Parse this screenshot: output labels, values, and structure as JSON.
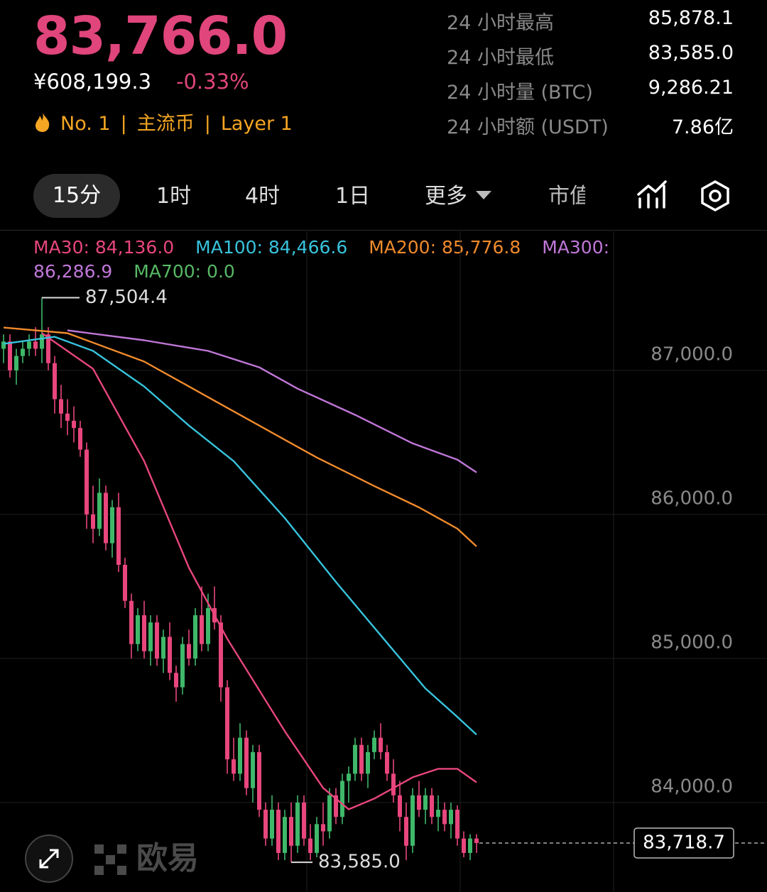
{
  "header": {
    "price": "83,766.0",
    "cny": "¥608,199.3",
    "change": "-0.33%",
    "tags": [
      "No. 1",
      "主流币",
      "Layer 1"
    ]
  },
  "stats": [
    {
      "label": "24 小时最高",
      "value": "85,878.1"
    },
    {
      "label": "24 小时最低",
      "value": "83,585.0"
    },
    {
      "label": "24 小时量 (BTC)",
      "value": "9,286.21"
    },
    {
      "label": "24 小时额 (USDT)",
      "value": "7.86亿"
    }
  ],
  "tabs": [
    "15分",
    "1时",
    "4时",
    "1日",
    "更多",
    "市值"
  ],
  "watermark": "欧易",
  "chart_data": {
    "type": "candlestick",
    "up_color": "#3fb86a",
    "down_color": "#e8467c",
    "ylim": [
      83438,
      87970
    ],
    "yticks": [
      {
        "value": 84000,
        "label": "84,000.0"
      },
      {
        "value": 85000,
        "label": "85,000.0"
      },
      {
        "value": 86000,
        "label": "86,000.0"
      },
      {
        "value": 87000,
        "label": "87,000.0"
      }
    ],
    "grid": true,
    "candles": [
      [
        87150,
        87250,
        87050,
        87200
      ],
      [
        87200,
        87250,
        86950,
        87000
      ],
      [
        87000,
        87150,
        86900,
        87100
      ],
      [
        87100,
        87200,
        87050,
        87150
      ],
      [
        87150,
        87250,
        87100,
        87200
      ],
      [
        87200,
        87300,
        87100,
        87150
      ],
      [
        87150,
        87504.4,
        87050,
        87250
      ],
      [
        87250,
        87300,
        87000,
        87050
      ],
      [
        87050,
        87100,
        86700,
        86800
      ],
      [
        86800,
        86900,
        86600,
        86700
      ],
      [
        86700,
        86800,
        86550,
        86650
      ],
      [
        86650,
        86750,
        86500,
        86600
      ],
      [
        86600,
        86650,
        86400,
        86450
      ],
      [
        86450,
        86500,
        85900,
        86000
      ],
      [
        86000,
        86200,
        85800,
        85900
      ],
      [
        85900,
        86250,
        85850,
        86150
      ],
      [
        86150,
        86200,
        85750,
        85800
      ],
      [
        85800,
        86100,
        85700,
        86050
      ],
      [
        86050,
        86150,
        85600,
        85650
      ],
      [
        85650,
        85700,
        85350,
        85400
      ],
      [
        85400,
        85450,
        85000,
        85100
      ],
      [
        85100,
        85350,
        85050,
        85300
      ],
      [
        85300,
        85400,
        85000,
        85050
      ],
      [
        85050,
        85300,
        84950,
        85250
      ],
      [
        85250,
        85300,
        84950,
        85000
      ],
      [
        85000,
        85200,
        84900,
        85150
      ],
      [
        85150,
        85250,
        84850,
        84900
      ],
      [
        84900,
        84950,
        84700,
        84800
      ],
      [
        84800,
        85150,
        84750,
        85100
      ],
      [
        85100,
        85200,
        84950,
        85000
      ],
      [
        85000,
        85350,
        84950,
        85300
      ],
      [
        85300,
        85500,
        85050,
        85100
      ],
      [
        85100,
        85450,
        85050,
        85350
      ],
      [
        85350,
        85500,
        85200,
        85250
      ],
      [
        85250,
        85300,
        84700,
        84800
      ],
      [
        84800,
        84850,
        84200,
        84300
      ],
      [
        84300,
        84450,
        84150,
        84200
      ],
      [
        84200,
        84550,
        84150,
        84450
      ],
      [
        84450,
        84500,
        84050,
        84100
      ],
      [
        84100,
        84400,
        84000,
        84350
      ],
      [
        84350,
        84400,
        83900,
        83950
      ],
      [
        83950,
        84000,
        83700,
        83750
      ],
      [
        83750,
        84050,
        83700,
        83950
      ],
      [
        83950,
        84000,
        83600,
        83650
      ],
      [
        83650,
        83950,
        83600,
        83900
      ],
      [
        83900,
        84000,
        83585,
        83700
      ],
      [
        83700,
        84050,
        83650,
        84000
      ],
      [
        84000,
        84050,
        83700,
        83750
      ],
      [
        83750,
        83850,
        83600,
        83650
      ],
      [
        83650,
        83900,
        83620,
        83850
      ],
      [
        83850,
        84000,
        83700,
        83800
      ],
      [
        83800,
        84100,
        83750,
        84050
      ],
      [
        84050,
        84100,
        83850,
        83900
      ],
      [
        83900,
        84200,
        83850,
        84150
      ],
      [
        84150,
        84250,
        84000,
        84200
      ],
      [
        84200,
        84450,
        84150,
        84400
      ],
      [
        84400,
        84450,
        84150,
        84200
      ],
      [
        84200,
        84400,
        84100,
        84350
      ],
      [
        84350,
        84500,
        84300,
        84450
      ],
      [
        84450,
        84550,
        84300,
        84350
      ],
      [
        84350,
        84400,
        84150,
        84200
      ],
      [
        84200,
        84300,
        84000,
        84050
      ],
      [
        84050,
        84150,
        83800,
        83900
      ],
      [
        83900,
        84000,
        83600,
        83700
      ],
      [
        83700,
        84100,
        83650,
        84050
      ],
      [
        84050,
        84150,
        83900,
        83950
      ],
      [
        83950,
        84100,
        83850,
        84050
      ],
      [
        84050,
        84100,
        83850,
        83900
      ],
      [
        83900,
        84050,
        83800,
        83950
      ],
      [
        83950,
        84000,
        83800,
        83850
      ],
      [
        83850,
        84000,
        83750,
        83950
      ],
      [
        83950,
        83980,
        83700,
        83750
      ],
      [
        83750,
        83800,
        83620,
        83650
      ],
      [
        83650,
        83780,
        83600,
        83750
      ],
      [
        83750,
        83780,
        83650,
        83718.7
      ]
    ],
    "series": [
      {
        "label": "MA30: 84,136.0",
        "color": "#e8467c",
        "x": [
          6,
          14,
          22,
          29,
          35,
          44,
          50,
          54,
          58,
          64,
          68,
          71,
          74
        ],
        "values": [
          87258,
          87011,
          86370,
          85630,
          85137,
          84495,
          84101,
          83953,
          84027,
          84175,
          84234,
          84234,
          84140
        ]
      },
      {
        "label": "MA100: 84,466.6",
        "color": "#38c3dc",
        "x": [
          0,
          8,
          14,
          22,
          29,
          36,
          44,
          52,
          59,
          66,
          71,
          74
        ],
        "values": [
          87184,
          87233,
          87135,
          86888,
          86617,
          86370,
          85975,
          85531,
          85161,
          84792,
          84594,
          84471
        ]
      },
      {
        "label": "MA200: 85,776.8",
        "color": "#f08a2c",
        "x": [
          0,
          10,
          22,
          33,
          41,
          49,
          58,
          65,
          71,
          74
        ],
        "values": [
          87297,
          87258,
          87061,
          86789,
          86592,
          86395,
          86197,
          86049,
          85901,
          85778
        ]
      },
      {
        "label": "MA300: 86,286.9",
        "color": "#c077d8",
        "x": [
          10,
          22,
          32,
          40,
          46,
          55,
          64,
          71,
          74
        ],
        "values": [
          87278,
          87209,
          87135,
          87021,
          86873,
          86691,
          86493,
          86380,
          86291
        ]
      },
      {
        "label": "MA700: 0.0",
        "color": "#57b865",
        "x": [],
        "values": []
      }
    ],
    "high": {
      "index": 6,
      "value": 87504.4,
      "label": "87,504.4"
    },
    "low": {
      "index": 45,
      "value": 83585.0,
      "label": "83,585.0"
    },
    "last": {
      "value": 83718.7,
      "label": "83,718.7"
    }
  }
}
